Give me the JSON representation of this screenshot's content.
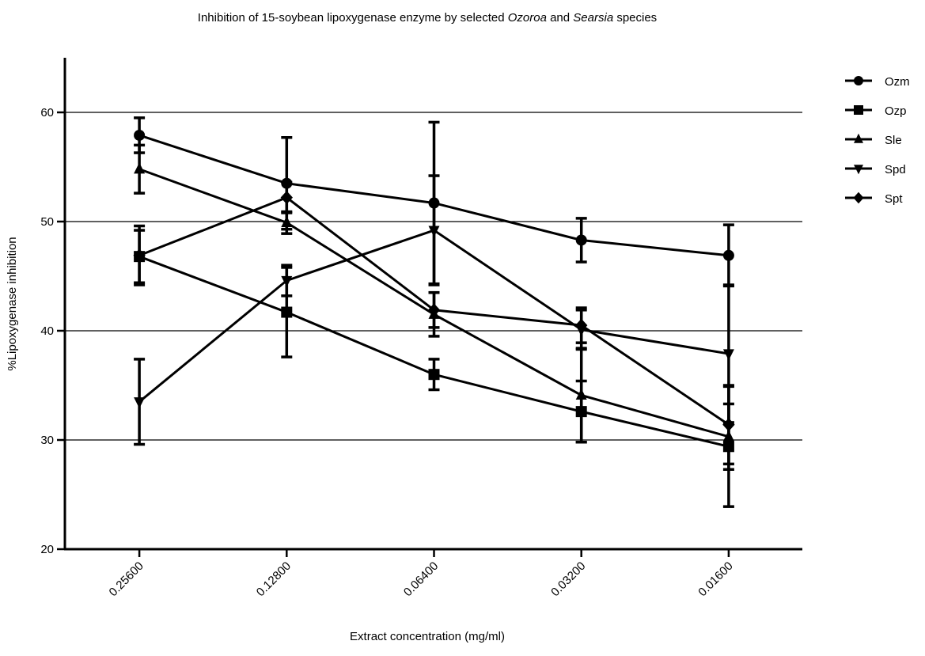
{
  "chart_data": {
    "type": "line",
    "title": [
      "Inhibition of  15-soybean lipoxygenase enzyme by selected ",
      "Ozoroa",
      " and ",
      "Searsia",
      " species"
    ],
    "x_label": "Extract concentration (mg/ml)",
    "y_label": "%Lipoxygenase inhibition",
    "categories": [
      "0.25600",
      "0.12800",
      "0.06400",
      "0.03200",
      "0.01600"
    ],
    "ylim": [
      20,
      65
    ],
    "yticks": [
      20,
      30,
      40,
      50,
      60
    ],
    "grid": true,
    "legend": "right",
    "series": [
      {
        "name": "Ozm",
        "color": "#000000",
        "marker": "circle",
        "values": [
          57.9,
          53.5,
          51.7,
          48.3,
          46.9
        ],
        "errors": [
          1.6,
          4.2,
          7.4,
          2.0,
          2.8
        ]
      },
      {
        "name": "Ozp",
        "color": "#000000",
        "marker": "square",
        "values": [
          46.8,
          41.7,
          36.0,
          32.6,
          29.4
        ],
        "errors": [
          2.4,
          4.1,
          1.4,
          2.8,
          5.5
        ]
      },
      {
        "name": "Sle",
        "color": "#000000",
        "marker": "triangle-up",
        "values": [
          54.8,
          49.9,
          41.5,
          34.1,
          30.3
        ],
        "errors": [
          2.2,
          1.0,
          2.0,
          4.3,
          3.0
        ]
      },
      {
        "name": "Spd",
        "color": "#000000",
        "marker": "triangle-down",
        "values": [
          33.5,
          44.6,
          49.2,
          40.1,
          37.9
        ],
        "errors": [
          3.9,
          1.4,
          5.0,
          1.8,
          6.3
        ]
      },
      {
        "name": "Spt",
        "color": "#000000",
        "marker": "diamond",
        "values": [
          46.9,
          52.2,
          41.9,
          40.5,
          31.4
        ],
        "errors": [
          2.7,
          1.4,
          1.6,
          1.6,
          3.6
        ]
      }
    ]
  }
}
